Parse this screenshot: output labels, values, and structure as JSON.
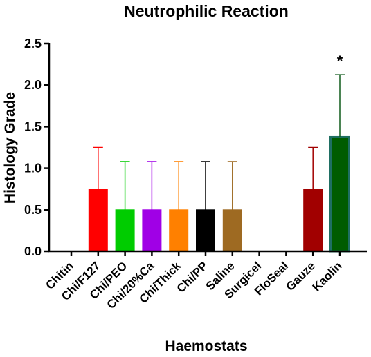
{
  "chart_data": {
    "type": "bar",
    "title": "Neutrophilic Reaction",
    "xlabel": "Haemostats",
    "ylabel": "Histology Grade",
    "ylim": [
      0,
      2.5
    ],
    "yticks": [
      "0.0",
      "0.5",
      "1.0",
      "1.5",
      "2.0",
      "2.5"
    ],
    "error_bars": "upper",
    "grid": false,
    "categories": [
      "Chitin",
      "Chi/F127",
      "Chi/PEO",
      "Chi/20%Ca",
      "Chi/Thick",
      "Chi/PP",
      "Saline",
      "Surgicel",
      "FloSeal",
      "Gauze",
      "Kaolin"
    ],
    "values": [
      0,
      0.75,
      0.5,
      0.5,
      0.5,
      0.5,
      0.5,
      0,
      0,
      0.75,
      1.375
    ],
    "errors": [
      0,
      0.5,
      0.58,
      0.58,
      0.58,
      0.58,
      0.58,
      0,
      0,
      0.5,
      0.75
    ],
    "colors": [
      "#000000",
      "#ff0000",
      "#00cc00",
      "#a000e6",
      "#ff8000",
      "#000000",
      "#9e6a22",
      "#000000",
      "#000000",
      "#a10000",
      "#0f5a1a"
    ],
    "annotations": [
      {
        "category": "Kaolin",
        "text": "*"
      }
    ]
  }
}
